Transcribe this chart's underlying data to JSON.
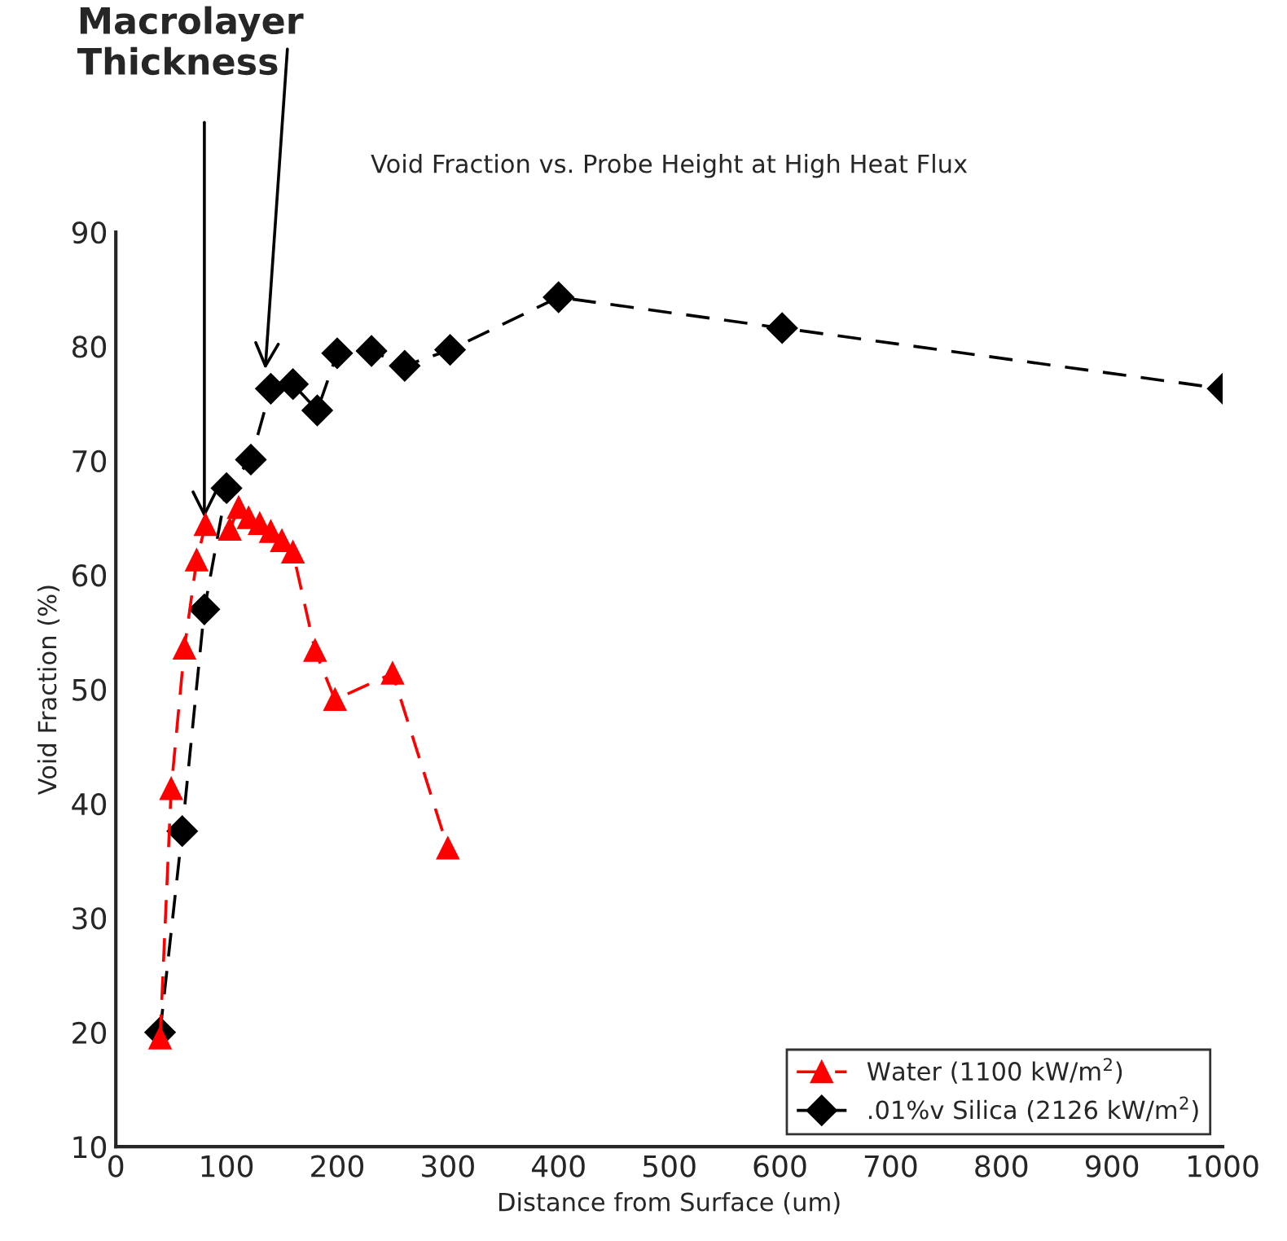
{
  "chart_data": {
    "type": "line",
    "title": "Void Fraction vs. Probe Height at High Heat Flux",
    "xlabel": "Distance from Surface (um)",
    "ylabel": "Void Fraction (%)",
    "annotations": [
      "Macrolayer\nThickness"
    ],
    "series": [
      {
        "name": "Water (1100 kW/m$^{2}$)",
        "color": "#ff0000",
        "marker": "triangle",
        "x": [
          40,
          50,
          62,
          73,
          81,
          103,
          111,
          120,
          130,
          140,
          150,
          160,
          180,
          198,
          250,
          300
        ],
        "values": [
          19.5,
          41.3,
          53.6,
          61.3,
          64.4,
          64,
          65.9,
          65,
          64.5,
          63.8,
          63,
          62,
          53.4,
          49.1,
          51.4,
          36.1
        ]
      },
      {
        "name": ".01%v Silica (2126 kW/m$^{2}$)",
        "color": "#000000",
        "marker": "diamond",
        "x": [
          40,
          60,
          80,
          100,
          122,
          140,
          160,
          182,
          200,
          231,
          261,
          302,
          400,
          602,
          1000
        ],
        "values": [
          20,
          37.6,
          57,
          67.6,
          70.1,
          76.3,
          76.7,
          74.4,
          79.4,
          79.6,
          78.3,
          79.7,
          84.3,
          81.6,
          76.3
        ]
      }
    ],
    "xlim": [
      0,
      1000
    ],
    "xticks": [
      0,
      100,
      200,
      300,
      400,
      500,
      600,
      700,
      800,
      900,
      1000
    ],
    "ylim": [
      10,
      90
    ],
    "yticks": [
      10,
      20,
      30,
      40,
      50,
      60,
      70,
      80,
      90
    ],
    "grid": false,
    "legend": "bottom right",
    "line_style": "dashed"
  }
}
